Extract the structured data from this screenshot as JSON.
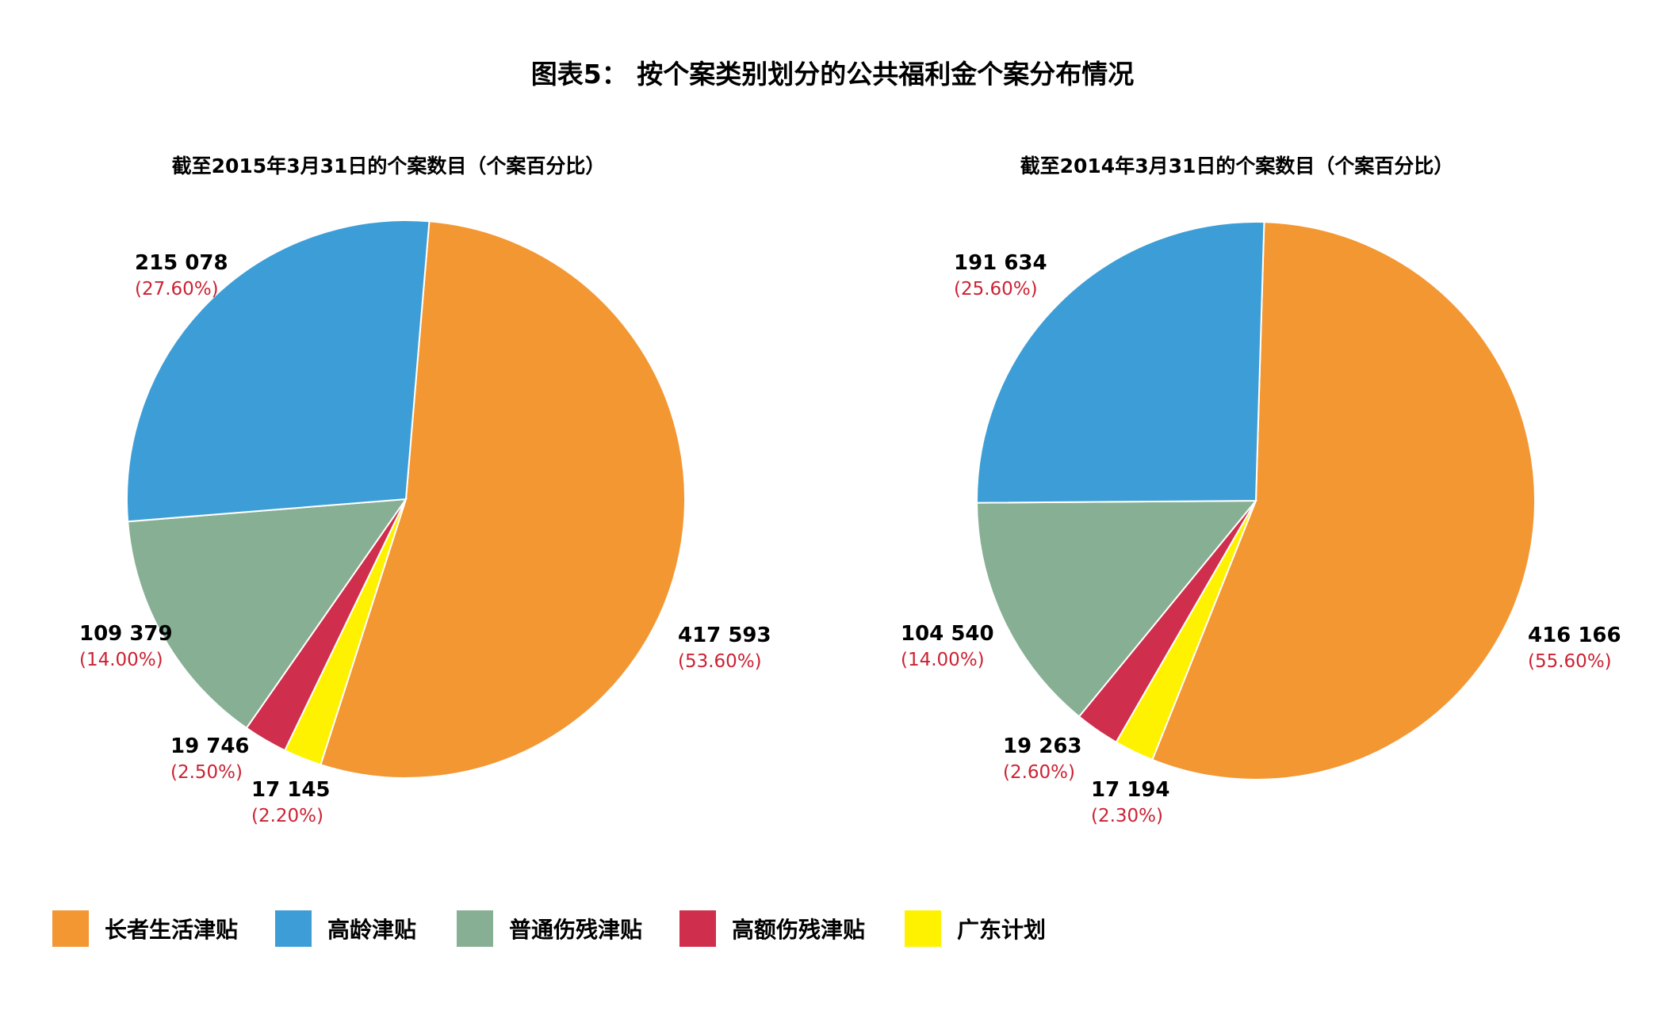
{
  "title": "图表5： 按个案类别划分的公共福利金个案分布情况",
  "legend": [
    {
      "label": "长者生活津贴",
      "color": "#F39733"
    },
    {
      "label": "高龄津贴",
      "color": "#3D9ED7"
    },
    {
      "label": "普通伤残津贴",
      "color": "#87AF93"
    },
    {
      "label": "高额伤残津贴",
      "color": "#CF2E4C"
    },
    {
      "label": "广东计划",
      "color": "#FFF200"
    }
  ],
  "chart_data": [
    {
      "type": "pie",
      "title": "截至2015年3月31日的个案数目（个案百分比）",
      "categories": [
        "长者生活津贴",
        "高龄津贴",
        "普通伤残津贴",
        "高额伤残津贴",
        "广东计划"
      ],
      "values": [
        417593,
        215078,
        109379,
        19746,
        17145
      ],
      "count_labels": [
        "417 593",
        "215 078",
        "109 379",
        "19 746",
        "17 145"
      ],
      "percent_labels": [
        "(53.60%)",
        "(27.60%)",
        "(14.00%)",
        "(2.50%)",
        "(2.20%)"
      ],
      "colors": [
        "#F39733",
        "#3D9ED7",
        "#87AF93",
        "#CF2E4C",
        "#FFF200"
      ]
    },
    {
      "type": "pie",
      "title": "截至2014年3月31日的个案数目（个案百分比）",
      "categories": [
        "长者生活津贴",
        "高龄津贴",
        "普通伤残津贴",
        "高额伤残津贴",
        "广东计划"
      ],
      "values": [
        416166,
        191634,
        104540,
        19263,
        17194
      ],
      "count_labels": [
        "416 166",
        "191 634",
        "104 540",
        "19 263",
        "17 194"
      ],
      "percent_labels": [
        "(55.60%)",
        "(25.60%)",
        "(14.00%)",
        "(2.60%)",
        "(2.30%)"
      ],
      "colors": [
        "#F39733",
        "#3D9ED7",
        "#87AF93",
        "#CF2E4C",
        "#FFF200"
      ]
    }
  ]
}
